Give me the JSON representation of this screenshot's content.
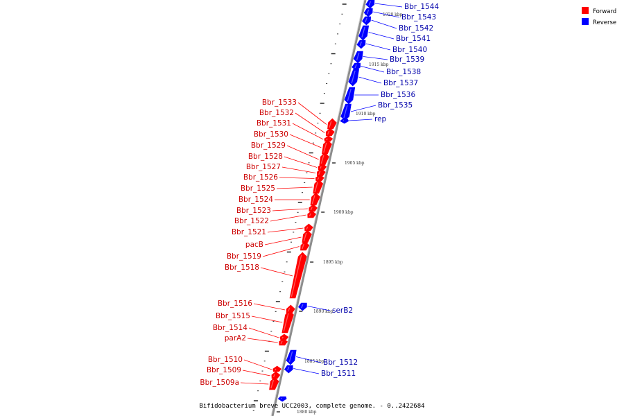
{
  "caption": "Bifidobacterium breve UCC2003, complete genome. - 0..2422684",
  "colors": {
    "forward": "#ff0000",
    "reverse": "#0000ff",
    "forward_text": "#cc0000",
    "reverse_text": "#0000aa",
    "axis": "#999999"
  },
  "legend": [
    {
      "label": "Forward",
      "color": "#ff0000"
    },
    {
      "label": "Reverse",
      "color": "#0000ff"
    }
  ],
  "kbp_labels": [
    "1920 kbp",
    "1915 kbp",
    "1910 kbp",
    "1905 kbp",
    "1900 kbp",
    "1895 kbp",
    "1890 kbp",
    "1885 kbp",
    "1880 kbp"
  ],
  "forward_genes": [
    "Bbr_1533",
    "Bbr_1532",
    "Bbr_1531",
    "Bbr_1530",
    "Bbr_1529",
    "Bbr_1528",
    "Bbr_1527",
    "Bbr_1526",
    "Bbr_1525",
    "Bbr_1524",
    "Bbr_1523",
    "Bbr_1522",
    "Bbr_1521",
    "pacB",
    "Bbr_1519",
    "Bbr_1518",
    "Bbr_1516",
    "Bbr_1515",
    "Bbr_1514",
    "parA2",
    "Bbr_1510",
    "Bbr_1509",
    "Bbr_1509a"
  ],
  "reverse_genes": [
    "Bbr_1544",
    "Bbr_1543",
    "Bbr_1542",
    "Bbr_1541",
    "Bbr_1540",
    "Bbr_1539",
    "Bbr_1538",
    "Bbr_1537",
    "Bbr_1536",
    "Bbr_1535",
    "rep",
    "serB2",
    "Bbr_1512",
    "Bbr_1511"
  ]
}
